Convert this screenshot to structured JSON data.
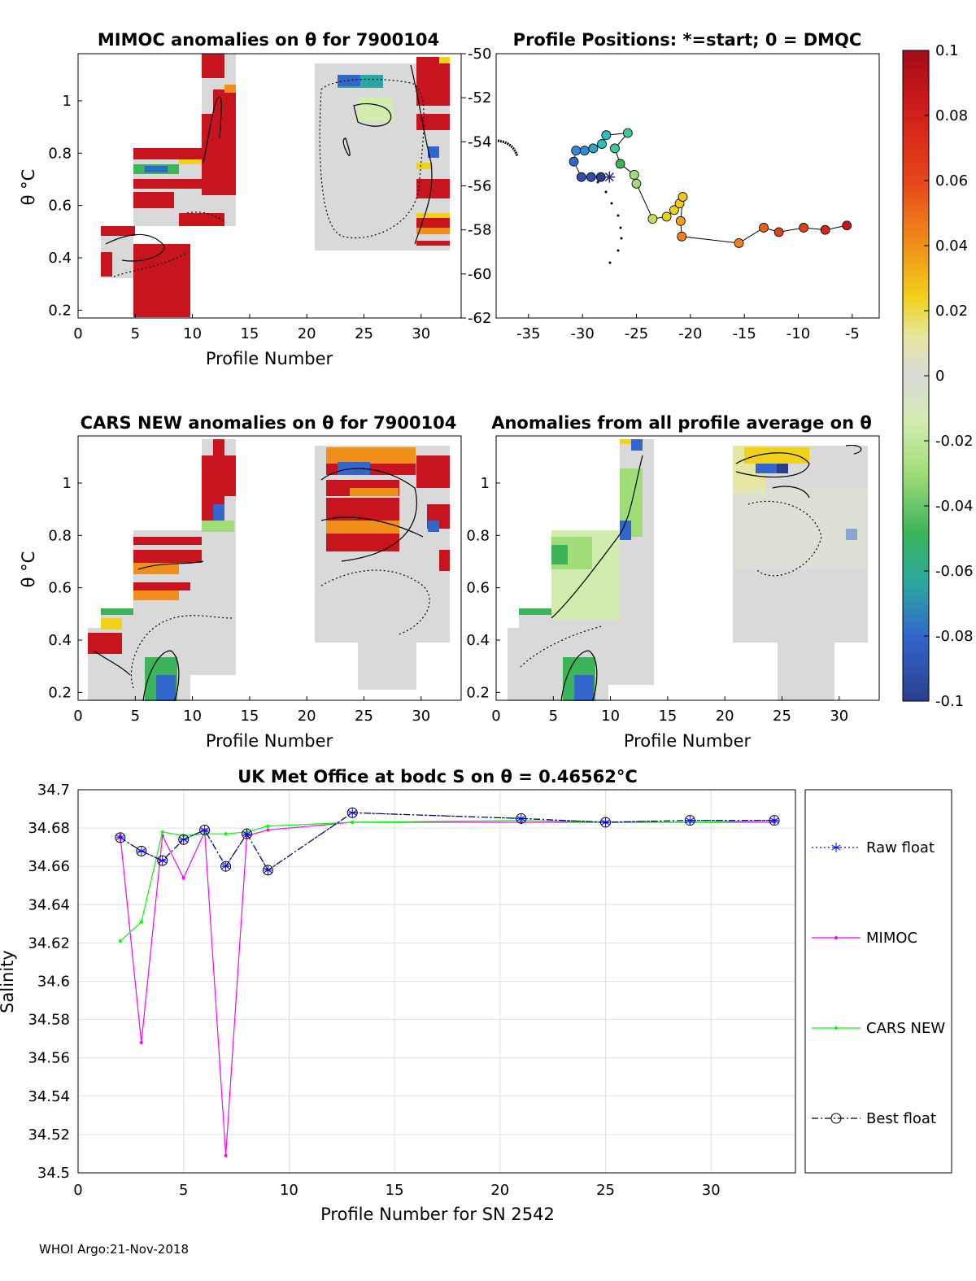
{
  "footer": "WHOI Argo:21-Nov-2018",
  "panels": {
    "mimoc": {
      "title": "MIMOC anomalies on θ  for 7900104",
      "xlabel": "Profile Number",
      "ylabel": "θ °C",
      "xticks": [
        0,
        5,
        10,
        15,
        20,
        25,
        30
      ],
      "yticks": [
        0.2,
        0.4,
        0.6,
        0.8,
        1
      ],
      "xlim": [
        0,
        33.5
      ],
      "ylim": [
        0.17,
        1.18
      ]
    },
    "positions": {
      "title": "Profile Positions: *=start; 0 = DMQC",
      "xticks": [
        -35,
        -30,
        -25,
        -20,
        -15,
        -10,
        -5
      ],
      "yticks": [
        -50,
        -52,
        -54,
        -56,
        -58,
        -60,
        -62
      ],
      "xlim": [
        -38,
        -2.5
      ],
      "ylim": [
        -62,
        -50
      ]
    },
    "cars": {
      "title": "CARS NEW anomalies on θ for 7900104",
      "xlabel": "Profile Number",
      "ylabel": "θ °C",
      "xticks": [
        0,
        5,
        10,
        15,
        20,
        25,
        30
      ],
      "yticks": [
        0.2,
        0.4,
        0.6,
        0.8,
        1
      ],
      "xlim": [
        0,
        33.5
      ],
      "ylim": [
        0.17,
        1.18
      ]
    },
    "allavg": {
      "title": "Anomalies from all profile average on θ",
      "xlabel": "Profile Number",
      "xticks": [
        0,
        5,
        10,
        15,
        20,
        25,
        30
      ],
      "yticks": [
        0.2,
        0.4,
        0.6,
        0.8,
        1
      ],
      "xlim": [
        0,
        33.5
      ],
      "ylim": [
        0.17,
        1.18
      ]
    },
    "colorbar": {
      "ticks": [
        "0.1",
        "0.08",
        "0.06",
        "0.04",
        "0.02",
        "0",
        "-0.02",
        "-0.04",
        "-0.06",
        "-0.08",
        "-0.1"
      ],
      "range": [
        -0.1,
        0.1
      ]
    }
  },
  "chart_data": [
    {
      "type": "line",
      "title": "UK Met Office at bodc S on θ = 0.46562°C",
      "xlabel": "Profile Number for SN 2542",
      "ylabel": "Salinity",
      "xlim": [
        0,
        34
      ],
      "ylim": [
        34.5,
        34.7
      ],
      "xticks": [
        0,
        5,
        10,
        15,
        20,
        25,
        30
      ],
      "yticks": [
        "34.5",
        "34.52",
        "34.54",
        "34.56",
        "34.58",
        "34.6",
        "34.62",
        "34.64",
        "34.66",
        "34.68",
        "34.7"
      ],
      "grid": true,
      "legend_position": "outside-right",
      "series": [
        {
          "name": "Raw float",
          "color": "#0000ff",
          "style": "dotted",
          "marker": "asterisk",
          "x": [
            2,
            3,
            4,
            5,
            6,
            7,
            8,
            9,
            13,
            21,
            25,
            29,
            33
          ],
          "y": [
            34.675,
            34.668,
            34.663,
            34.674,
            34.679,
            34.66,
            34.677,
            34.658,
            34.688,
            34.685,
            34.683,
            34.684,
            34.684
          ]
        },
        {
          "name": "MIMOC",
          "color": "#ff00ff",
          "style": "solid",
          "marker": "dot",
          "x": [
            2,
            3,
            4,
            5,
            6,
            7,
            8,
            9,
            13,
            21,
            25,
            29,
            33
          ],
          "y": [
            34.676,
            34.568,
            34.676,
            34.654,
            34.678,
            34.509,
            34.676,
            34.679,
            34.683,
            34.683,
            34.683,
            34.683,
            34.683
          ]
        },
        {
          "name": "CARS NEW",
          "color": "#00ff00",
          "style": "solid",
          "marker": "dot",
          "x": [
            2,
            3,
            4,
            5,
            6,
            7,
            8,
            9,
            13,
            21,
            25,
            29,
            33
          ],
          "y": [
            34.621,
            34.631,
            34.678,
            34.676,
            34.677,
            34.677,
            34.678,
            34.681,
            34.683,
            34.684,
            34.683,
            34.683,
            34.684
          ]
        },
        {
          "name": "Best float",
          "color": "#000000",
          "style": "dashdot",
          "marker": "circle",
          "x": [
            2,
            3,
            4,
            5,
            6,
            7,
            8,
            9,
            13,
            21,
            25,
            29,
            33
          ],
          "y": [
            34.675,
            34.668,
            34.663,
            34.674,
            34.679,
            34.66,
            34.677,
            34.658,
            34.688,
            34.685,
            34.683,
            34.684,
            34.684
          ]
        }
      ]
    },
    {
      "type": "scatter",
      "title": "Profile Positions: *=start; 0 = DMQC",
      "xlabel": "",
      "ylabel": "",
      "xlim": [
        -38,
        -2.5
      ],
      "ylim": [
        -62,
        -50
      ],
      "track_lon": [
        -27.5,
        -28.3,
        -29.2,
        -30.1,
        -30.8,
        -30.6,
        -29.8,
        -29.0,
        -28.2,
        -27.8,
        -25.8,
        -27.0,
        -26.5,
        -25.2,
        -25.0,
        -23.5,
        -22.2,
        -21.5,
        -21.0,
        -20.7,
        -20.9,
        -20.8,
        -15.5,
        -13.2,
        -11.8,
        -9.5,
        -7.5,
        -5.5
      ],
      "track_lat": [
        -55.6,
        -55.6,
        -55.6,
        -55.6,
        -54.9,
        -54.4,
        -54.4,
        -54.3,
        -54.1,
        -53.7,
        -53.6,
        -54.3,
        -55.0,
        -55.5,
        -55.9,
        -57.5,
        -57.4,
        -57.1,
        -56.8,
        -56.5,
        -57.6,
        -58.3,
        -58.6,
        -57.9,
        -58.1,
        -57.9,
        -58.0,
        -57.8
      ]
    }
  ],
  "legend": {
    "items": [
      "Raw float",
      "MIMOC",
      "CARS NEW",
      "Best float"
    ]
  }
}
